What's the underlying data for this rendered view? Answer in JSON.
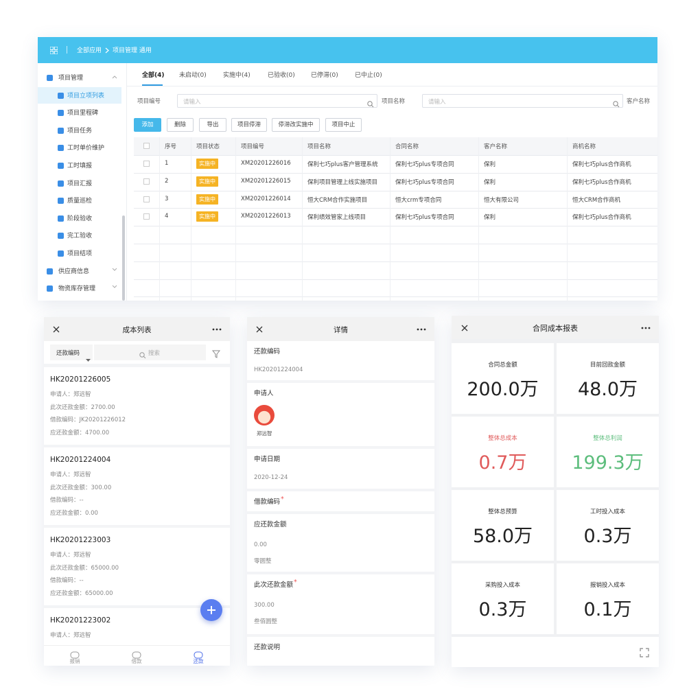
{
  "header": {
    "breadcrumb": [
      "全部应用",
      "项目管理 通用"
    ]
  },
  "sidebar": [
    {
      "label": "项目管理",
      "children": [
        "项目立项列表",
        "项目里程碑",
        "项目任务",
        "工时单价维护",
        "工时填报",
        "项目汇报",
        "质量巡检",
        "阶段验收",
        "完工验收",
        "项目结项"
      ]
    },
    {
      "label": "供应商信息"
    },
    {
      "label": "物资库存管理"
    }
  ],
  "tabs": [
    "全部(4)",
    "未启动(0)",
    "实施中(4)",
    "已验收(0)",
    "已停滞(0)",
    "已中止(0)"
  ],
  "filters": [
    {
      "label": "项目编号",
      "placeholder": "请输入"
    },
    {
      "label": "项目名称",
      "placeholder": "请输入"
    },
    {
      "label": "客户名称"
    }
  ],
  "buttons": [
    "添加",
    "删除",
    "导出",
    "项目停滞",
    "停滞改实施中",
    "项目中止"
  ],
  "table": {
    "columns": [
      "序号",
      "项目状态",
      "项目编号",
      "项目名称",
      "合同名称",
      "客户名称",
      "商机名称"
    ],
    "rows": [
      [
        1,
        "实施中",
        "XM20201226016",
        "保利七巧plus客户管理系统",
        "保利七巧plus专项合同",
        "保利",
        "保利七巧plus合作商机"
      ],
      [
        2,
        "实施中",
        "XM20201226015",
        "保利项目管理上线实施项目",
        "保利七巧plus专项合同",
        "保利",
        "保利七巧plus合作商机"
      ],
      [
        3,
        "实施中",
        "XM20201226014",
        "恒大CRM合作实施项目",
        "恒大crm专项合同",
        "恒大有限公司",
        "恒大CRM合作商机"
      ],
      [
        4,
        "实施中",
        "XM20201226013",
        "保利绩效管家上线项目",
        "保利七巧plus专项合同",
        "保利",
        "保利七巧plus合作商机"
      ]
    ]
  },
  "cost_list": {
    "title": "成本列表",
    "select": "还款编码",
    "search": "搜索",
    "cards": [
      {
        "code": "HK20201226005",
        "lines": [
          "申请人：郑远智",
          "此次还款金额：2700.00",
          "借款编码：JK20201226012",
          "应还款金额：4700.00"
        ]
      },
      {
        "code": "HK20201224004",
        "lines": [
          "申请人：郑远智",
          "此次还款金额：300.00",
          "借款编码：--",
          "应还款金额：0.00"
        ]
      },
      {
        "code": "HK20201223003",
        "lines": [
          "申请人：郑远智",
          "此次还款金额：65000.00",
          "借款编码：--",
          "应还款金额：65000.00"
        ]
      },
      {
        "code": "HK20201223002",
        "lines": [
          "申请人：郑远智"
        ]
      }
    ],
    "tabbar": [
      "报销",
      "借款",
      "还款"
    ]
  },
  "detail": {
    "title": "详情",
    "sections": [
      {
        "label": "还款编码",
        "value": "HK20201224004"
      },
      {
        "label": "申请人",
        "person": "郑远智"
      },
      {
        "label": "申请日期",
        "value": "2020-12-24"
      },
      {
        "label": "借款编码",
        "mark": "*"
      },
      {
        "label": "应还款金额",
        "value": "0.00",
        "note": "零圆整"
      },
      {
        "label": "此次还款金额",
        "mark": "*",
        "value": "300.00",
        "note": "叁佰圆整"
      },
      {
        "label": "还款说明"
      }
    ]
  },
  "report": {
    "title": "合同成本报表",
    "tiles": [
      {
        "label": "合同总金额",
        "value": "200.0万"
      },
      {
        "label": "目前回款金额",
        "value": "48.0万"
      },
      {
        "label": "整体总成本",
        "value": "0.7万"
      },
      {
        "label": "整体总利润",
        "value": "199.3万"
      },
      {
        "label": "整体总预算",
        "value": "58.0万"
      },
      {
        "label": "工时投入成本",
        "value": "0.3万"
      },
      {
        "label": "采购投入成本",
        "value": "0.3万"
      },
      {
        "label": "报销投入成本",
        "value": "0.1万"
      }
    ]
  }
}
